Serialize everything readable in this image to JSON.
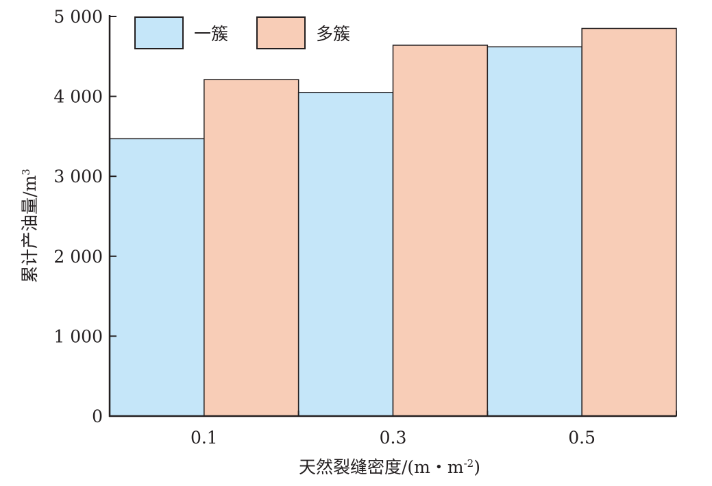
{
  "chart_data": {
    "type": "bar",
    "categories": [
      "0.1",
      "0.3",
      "0.5"
    ],
    "series": [
      {
        "name": "一簇",
        "color": "#c5e6f9",
        "values": [
          3470,
          4050,
          4620
        ]
      },
      {
        "name": "多簇",
        "color": "#f8cdb7",
        "values": [
          4210,
          4640,
          4850
        ]
      }
    ],
    "ylim": [
      0,
      5000
    ],
    "yticks": [
      0,
      1000,
      2000,
      3000,
      4000,
      5000
    ],
    "ytick_labels": [
      "0",
      "1 000",
      "2 000",
      "3 000",
      "4 000",
      "5 000"
    ],
    "xlabel": "天然裂缝密度/(m・m",
    "xlabel_sup": "-2",
    "xlabel_end": ")",
    "ylabel": "累计产油量/m",
    "ylabel_sup": "3",
    "legend_position": "top-left",
    "grid": false
  }
}
